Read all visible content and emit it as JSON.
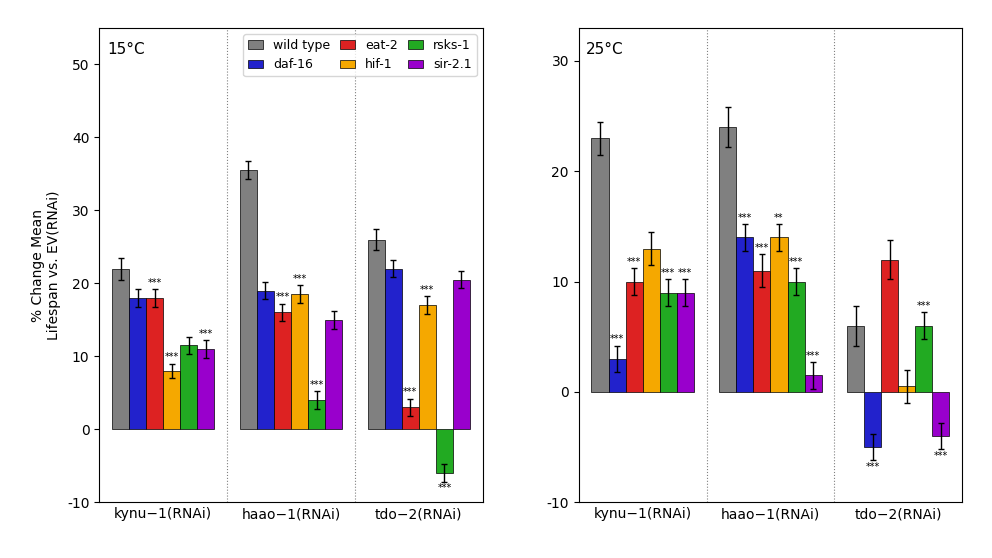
{
  "chart_data": [
    {
      "type": "bar",
      "annotation": "15°C",
      "y_label": "% Change Mean\nLifespan vs. EV(RNAi)",
      "categories": [
        "kynu−1(RNAi)",
        "haao−1(RNAi)",
        "tdo−2(RNAi)"
      ],
      "ylim": [
        -10,
        55
      ],
      "yticks": [
        -10,
        0,
        10,
        20,
        30,
        40,
        50
      ],
      "legend": "upper right",
      "series": [
        {
          "name": "wild type",
          "color": "#808080",
          "values": [
            22,
            35.5,
            26
          ],
          "errors": [
            1.5,
            1.2,
            1.5
          ],
          "annotations": [
            null,
            null,
            null
          ]
        },
        {
          "name": "daf-16",
          "color": "#2222cc",
          "values": [
            18,
            19,
            22
          ],
          "errors": [
            1.2,
            1.2,
            1.2
          ],
          "annotations": [
            null,
            null,
            null
          ]
        },
        {
          "name": "eat-2",
          "color": "#dd2222",
          "values": [
            18,
            16,
            3
          ],
          "errors": [
            1.2,
            1.2,
            1.2
          ],
          "annotations": [
            "***",
            "***",
            "***"
          ]
        },
        {
          "name": "hif-1",
          "color": "#f5a800",
          "values": [
            8,
            18.5,
            17
          ],
          "errors": [
            1.0,
            1.2,
            1.2
          ],
          "annotations": [
            "***",
            "***",
            "***"
          ]
        },
        {
          "name": "rsks-1",
          "color": "#22aa22",
          "values": [
            11.5,
            4,
            -6
          ],
          "errors": [
            1.2,
            1.2,
            1.2
          ],
          "annotations": [
            null,
            "***",
            "***"
          ]
        },
        {
          "name": "sir-2.1",
          "color": "#9900cc",
          "values": [
            11,
            15,
            20.5
          ],
          "errors": [
            1.2,
            1.2,
            1.2
          ],
          "annotations": [
            "***",
            null,
            null
          ]
        }
      ]
    },
    {
      "type": "bar",
      "annotation": "25°C",
      "categories": [
        "kynu−1(RNAi)",
        "haao−1(RNAi)",
        "tdo−2(RNAi)"
      ],
      "ylim": [
        -10,
        33
      ],
      "yticks": [
        -10,
        0,
        10,
        20,
        30
      ],
      "series": [
        {
          "name": "wild type",
          "color": "#808080",
          "values": [
            23,
            24,
            6
          ],
          "errors": [
            1.5,
            1.8,
            1.8
          ],
          "annotations": [
            null,
            null,
            null
          ]
        },
        {
          "name": "daf-16",
          "color": "#2222cc",
          "values": [
            3,
            14,
            -5
          ],
          "errors": [
            1.2,
            1.2,
            1.2
          ],
          "annotations": [
            "***",
            "***",
            "***"
          ]
        },
        {
          "name": "eat-2",
          "color": "#dd2222",
          "values": [
            10,
            11,
            12
          ],
          "errors": [
            1.2,
            1.5,
            1.8
          ],
          "annotations": [
            "***",
            "***",
            null
          ]
        },
        {
          "name": "hif-1",
          "color": "#f5a800",
          "values": [
            13,
            14,
            0.5
          ],
          "errors": [
            1.5,
            1.2,
            1.5
          ],
          "annotations": [
            null,
            "**",
            null
          ]
        },
        {
          "name": "rsks-1",
          "color": "#22aa22",
          "values": [
            9,
            10,
            6
          ],
          "errors": [
            1.2,
            1.2,
            1.2
          ],
          "annotations": [
            "***",
            "***",
            "***"
          ]
        },
        {
          "name": "sir-2.1",
          "color": "#9900cc",
          "values": [
            9,
            1.5,
            -4
          ],
          "errors": [
            1.2,
            1.2,
            1.2
          ],
          "annotations": [
            "***",
            "***",
            "***"
          ]
        }
      ]
    }
  ]
}
